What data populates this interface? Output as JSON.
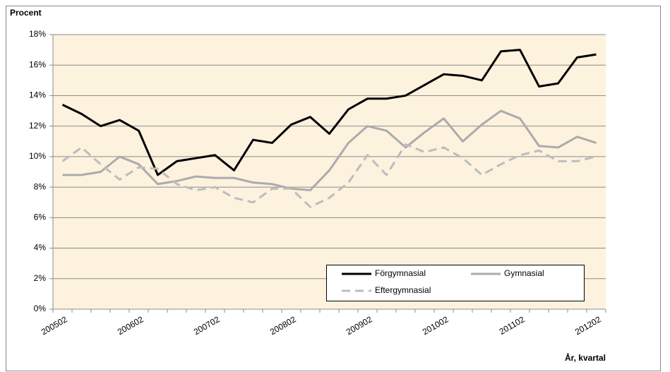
{
  "chart_data": {
    "type": "line",
    "y_axis_label": "Procent",
    "x_axis_label": "År, kvartal",
    "categories": [
      "200502",
      null,
      null,
      null,
      "200602",
      null,
      null,
      null,
      "200702",
      null,
      null,
      null,
      "200802",
      null,
      null,
      null,
      "200902",
      null,
      null,
      null,
      "201002",
      null,
      null,
      null,
      "201102",
      null,
      null,
      null,
      "201202"
    ],
    "series": [
      {
        "name": "Förgymnasial",
        "color": "#000000",
        "dash": "solid",
        "values": [
          13.4,
          12.8,
          12.0,
          12.4,
          11.7,
          8.8,
          9.7,
          9.9,
          10.1,
          9.1,
          11.1,
          10.9,
          12.1,
          12.6,
          11.5,
          13.1,
          13.8,
          13.8,
          14.0,
          14.7,
          15.4,
          15.3,
          15.0,
          16.9,
          17.0,
          14.6,
          14.8,
          16.5,
          16.7
        ]
      },
      {
        "name": "Gymnasial",
        "color": "#ababab",
        "dash": "solid",
        "values": [
          8.8,
          8.8,
          9.0,
          10.0,
          9.5,
          8.2,
          8.4,
          8.7,
          8.6,
          8.6,
          8.3,
          8.2,
          7.9,
          7.8,
          9.1,
          10.9,
          12.0,
          11.7,
          10.6,
          11.6,
          12.5,
          11.0,
          12.1,
          13.0,
          12.5,
          10.7,
          10.6,
          11.3,
          10.9
        ]
      },
      {
        "name": "Eftergymnasial",
        "color": "#bdbdbd",
        "dash": "dashed",
        "values": [
          9.7,
          10.6,
          9.5,
          8.5,
          9.3,
          9.2,
          8.2,
          7.8,
          8.0,
          7.3,
          7.0,
          7.9,
          7.9,
          6.7,
          7.3,
          8.3,
          10.1,
          8.8,
          10.8,
          10.3,
          10.6,
          9.9,
          8.8,
          9.5,
          10.1,
          10.4,
          9.7,
          9.7,
          10.0
        ]
      }
    ],
    "ylim": [
      0,
      18
    ],
    "yticks": [
      {
        "value": 0,
        "label": "0%"
      },
      {
        "value": 2,
        "label": "2%"
      },
      {
        "value": 4,
        "label": "4%"
      },
      {
        "value": 6,
        "label": "6%"
      },
      {
        "value": 8,
        "label": "8%"
      },
      {
        "value": 10,
        "label": "10%"
      },
      {
        "value": 12,
        "label": "12%"
      },
      {
        "value": 14,
        "label": "14%"
      },
      {
        "value": 16,
        "label": "16%"
      },
      {
        "value": 18,
        "label": "18%"
      }
    ],
    "grid": true,
    "legend": "bottom-right"
  }
}
